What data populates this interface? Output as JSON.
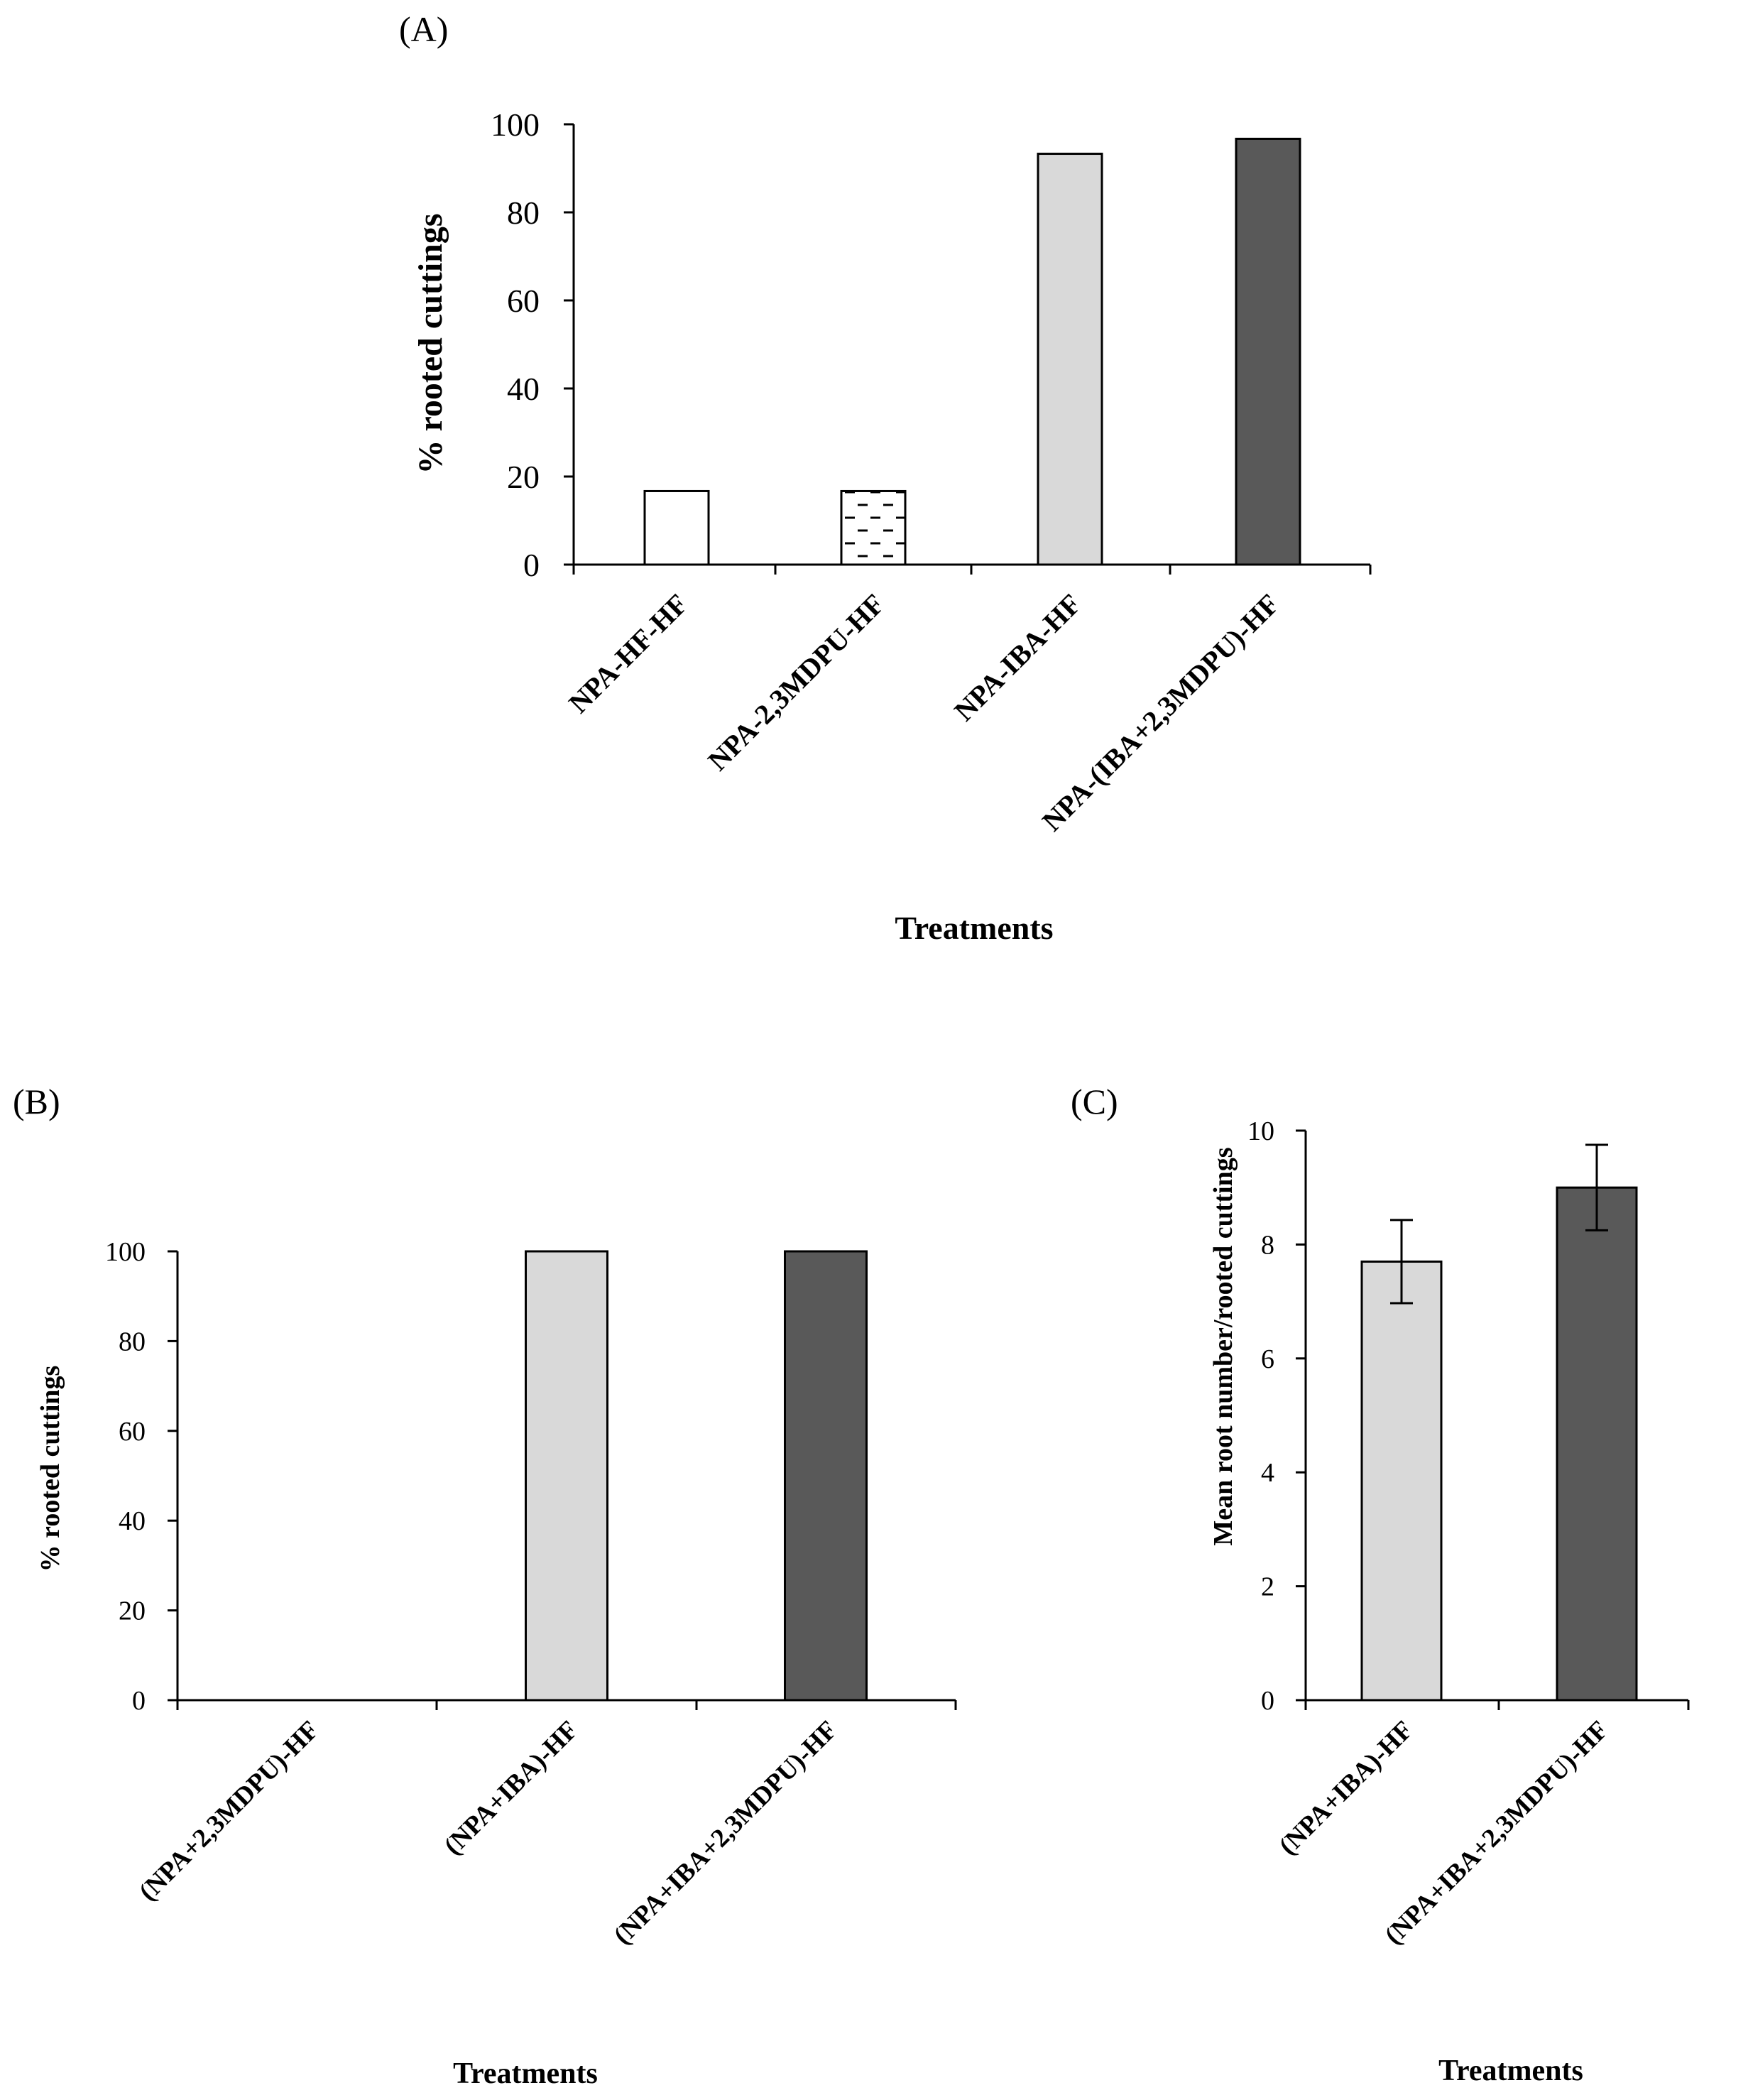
{
  "chart_data": [
    {
      "panel": "(A)",
      "type": "bar",
      "categories": [
        "NPA-HF-HF",
        "NPA-2,3MDPU-HF",
        "NPA-IBA-HF",
        "NPA-(IBA+2,3MDPU)-HF"
      ],
      "values": [
        16.7,
        16.7,
        93.3,
        96.7
      ],
      "fills": [
        "#ffffff",
        "pattern-dashes",
        "#d9d9d9",
        "#595959"
      ],
      "ylabel": "% rooted cuttings",
      "xlabel": "Treatments",
      "ylim": [
        0,
        100
      ],
      "yticks": [
        0,
        20,
        40,
        60,
        80,
        100
      ],
      "ytick_labels": [
        "0",
        "20",
        "40",
        "60",
        "80",
        "100"
      ]
    },
    {
      "panel": "(B)",
      "type": "bar",
      "categories": [
        "(NPA+2,3MDPU)-HF",
        "(NPA+IBA)-HF",
        "(NPA+IBA+2,3MDPU)-HF"
      ],
      "values": [
        0,
        100,
        100
      ],
      "fills": [
        "#ffffff",
        "#d9d9d9",
        "#595959"
      ],
      "ylabel": "% rooted  cuttings",
      "xlabel": "Treatments",
      "ylim": [
        0,
        100
      ],
      "yticks": [
        0,
        20,
        40,
        60,
        80,
        100
      ],
      "ytick_labels": [
        "0",
        "20",
        "40",
        "60",
        "80",
        "100"
      ]
    },
    {
      "panel": "(C)",
      "type": "bar",
      "categories": [
        "(NPA+IBA)-HF",
        "(NPA+IBA+2,3MDPU)-HF"
      ],
      "values": [
        7.7,
        9.0
      ],
      "errors": [
        0.73,
        0.75
      ],
      "fills": [
        "#d9d9d9",
        "#595959"
      ],
      "ylabel": "Mean root number/rooted cuttings",
      "xlabel": "Treatments",
      "ylim": [
        0,
        10
      ],
      "yticks": [
        0,
        2,
        4,
        6,
        8,
        10
      ],
      "ytick_labels": [
        "0",
        "2",
        "4",
        "6",
        "8",
        "10"
      ]
    }
  ]
}
